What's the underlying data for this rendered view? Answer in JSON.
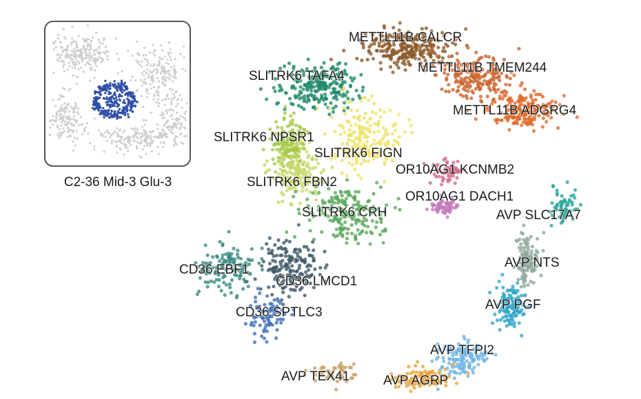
{
  "inset": {
    "caption": "C2-36 Mid-3 Glu-3",
    "highlight_color": "#2f4fa8",
    "background_color": "#cfcfcf"
  },
  "clusters": [
    {
      "label": "METTL11B CALCR",
      "color": "#8a5a2b"
    },
    {
      "label": "METTL11B TMEM244",
      "color": "#c9652f"
    },
    {
      "label": "METTL11B ADGRG4",
      "color": "#e06a2a"
    },
    {
      "label": "SLITRK6 TAFA4",
      "color": "#1f8a6a"
    },
    {
      "label": "SLITRK6 NPSR1",
      "color": "#a6c94a"
    },
    {
      "label": "SLITRK6 FIGN",
      "color": "#ece36a"
    },
    {
      "label": "SLITRK6 FBN2",
      "color": "#c8d86a"
    },
    {
      "label": "SLITRK6 CRH",
      "color": "#5aa85a"
    },
    {
      "label": "OR10AG1 KCNMB2",
      "color": "#d46a8a"
    },
    {
      "label": "OR10AG1 DACH1",
      "color": "#c07ab8"
    },
    {
      "label": "AVP SLC17A7",
      "color": "#2aa59a"
    },
    {
      "label": "AVP NTS",
      "color": "#8fa89a"
    },
    {
      "label": "AVP PGF",
      "color": "#2fa6c8"
    },
    {
      "label": "AVP TFPI2",
      "color": "#6fb4e6"
    },
    {
      "label": "AVP AGRP",
      "color": "#e8a43a"
    },
    {
      "label": "AVP TEX41",
      "color": "#c8a060"
    },
    {
      "label": "CD36 EBF1",
      "color": "#3a8a82"
    },
    {
      "label": "CD36 LMCD1",
      "color": "#3f5866"
    },
    {
      "label": "CD36 SPTLC3",
      "color": "#3f6fb8"
    }
  ]
}
